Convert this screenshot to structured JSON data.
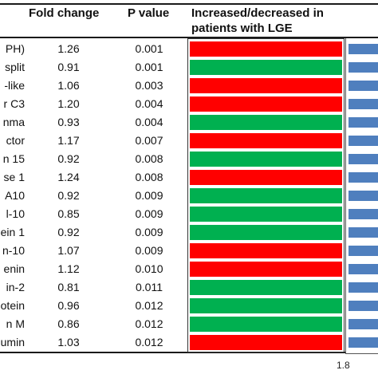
{
  "headers": {
    "fold_change": "Fold change",
    "p_value": "P value",
    "status_line1": "Increased/decreased in",
    "status_line2": "patients with LGE"
  },
  "colors": {
    "increased": "#ff0000",
    "decreased": "#00b050",
    "bar": "#4f7fbe"
  },
  "rows": [
    {
      "name": "PH)",
      "fold_change": "1.26",
      "p_value": "0.001",
      "status": "increased"
    },
    {
      "name": "split",
      "fold_change": "0.91",
      "p_value": "0.001",
      "status": "decreased"
    },
    {
      "name": "-like",
      "fold_change": "1.06",
      "p_value": "0.003",
      "status": "increased"
    },
    {
      "name": "r C3",
      "fold_change": "1.20",
      "p_value": "0.004",
      "status": "increased"
    },
    {
      "name": "nma",
      "fold_change": "0.93",
      "p_value": "0.004",
      "status": "decreased"
    },
    {
      "name": "ctor",
      "fold_change": "1.17",
      "p_value": "0.007",
      "status": "increased"
    },
    {
      "name": "n 15",
      "fold_change": "0.92",
      "p_value": "0.008",
      "status": "decreased"
    },
    {
      "name": "se 1",
      "fold_change": "1.24",
      "p_value": "0.008",
      "status": "increased"
    },
    {
      "name": "A10",
      "fold_change": "0.92",
      "p_value": "0.009",
      "status": "decreased"
    },
    {
      "name": "l-10",
      "fold_change": "0.85",
      "p_value": "0.009",
      "status": "decreased"
    },
    {
      "name": "ein 1",
      "fold_change": "0.92",
      "p_value": "0.009",
      "status": "decreased"
    },
    {
      "name": "n-10",
      "fold_change": "1.07",
      "p_value": "0.009",
      "status": "increased"
    },
    {
      "name": "enin",
      "fold_change": "1.12",
      "p_value": "0.010",
      "status": "increased"
    },
    {
      "name": "in-2",
      "fold_change": "0.81",
      "p_value": "0.011",
      "status": "decreased"
    },
    {
      "name": "otein",
      "fold_change": "0.96",
      "p_value": "0.012",
      "status": "decreased"
    },
    {
      "name": "n M",
      "fold_change": "0.86",
      "p_value": "0.012",
      "status": "decreased"
    },
    {
      "name": "umin",
      "fold_change": "1.03",
      "p_value": "0.012",
      "status": "increased"
    }
  ],
  "axis": {
    "tick_label": "1.8"
  }
}
